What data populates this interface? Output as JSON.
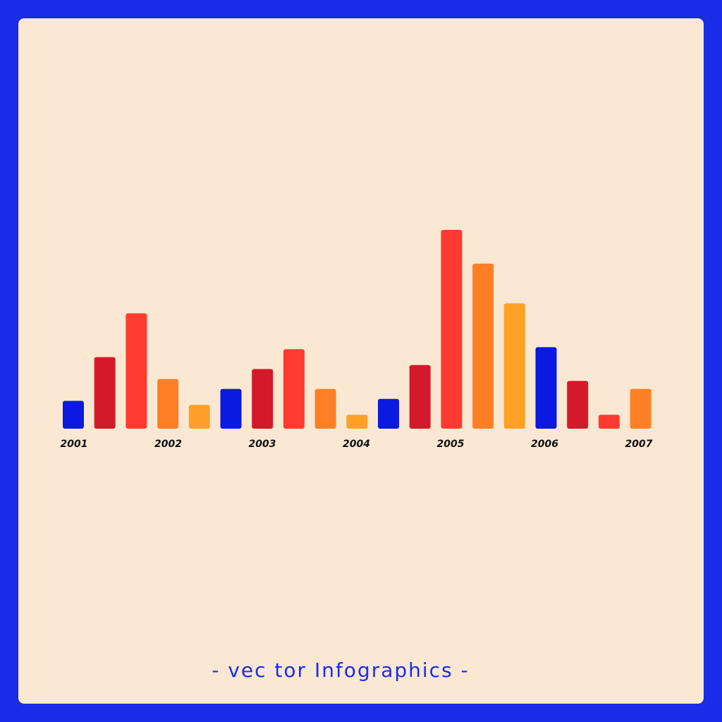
{
  "caption": "- vec tor Infographics -",
  "colors": {
    "frame": "#1a2ce8",
    "background": "#fae8d3",
    "tick_text": "#111111"
  },
  "chart_data": {
    "type": "bar",
    "title": "",
    "xlabel": "",
    "ylabel": "",
    "grid": false,
    "legend": "none",
    "ylim": [
      0,
      100
    ],
    "year_labels": [
      "2001",
      "2002",
      "2003",
      "2004",
      "2005",
      "2006",
      "2007"
    ],
    "values": [
      14,
      36,
      58,
      25,
      12,
      20,
      30,
      40,
      20,
      7,
      15,
      32,
      100,
      83,
      63,
      41,
      24,
      7,
      20
    ],
    "bar_colors": [
      "#0a1ae0",
      "#d41a2a",
      "#ff3b30",
      "#ff7f27",
      "#ffa126",
      "#0a1ae0",
      "#d41a2a",
      "#ff3b30",
      "#ff7f27",
      "#ffa126",
      "#0a1ae0",
      "#d41a2a",
      "#ff3b30",
      "#ff7f27",
      "#ffa126",
      "#0a1ae0",
      "#d41a2a",
      "#ff3b30",
      "#ff7f27"
    ]
  }
}
